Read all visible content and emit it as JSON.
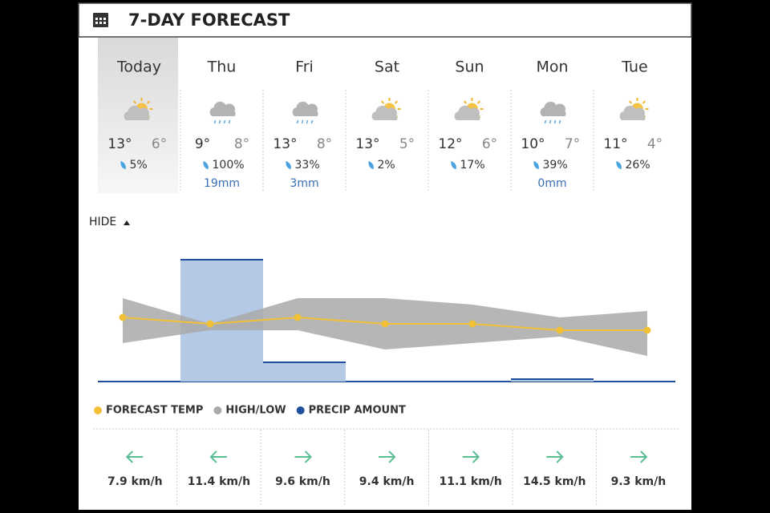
{
  "header": {
    "title": "7-DAY FORECAST"
  },
  "toggle": "HIDE",
  "icons": [
    "sun-cloud",
    "rain-cloud",
    "rain-cloud",
    "sun-cloud",
    "sun-cloud",
    "rain-cloud",
    "sun-cloud"
  ],
  "precip_chance": [
    "5%",
    "100%",
    "33%",
    "2%",
    "17%",
    "39%",
    "26%"
  ],
  "wind": [
    {
      "direction": "left",
      "speed": "7.9 km/h"
    },
    {
      "direction": "left",
      "speed": "11.4 km/h"
    },
    {
      "direction": "right",
      "speed": "9.6 km/h"
    },
    {
      "direction": "right",
      "speed": "9.4 km/h"
    },
    {
      "direction": "right",
      "speed": "11.1 km/h"
    },
    {
      "direction": "right",
      "speed": "14.5 km/h"
    },
    {
      "direction": "right",
      "speed": "9.3 km/h"
    }
  ],
  "chart_data": {
    "type": "line",
    "categories": [
      "Today",
      "Thu",
      "Fri",
      "Sat",
      "Sun",
      "Mon",
      "Tue"
    ],
    "ylim": [
      0,
      22
    ],
    "series": [
      {
        "name": "FORECAST TEMP",
        "color": "#f2c037",
        "values": [
          10,
          9,
          10,
          9,
          9,
          8,
          8
        ]
      },
      {
        "name": "HIGH/LOW",
        "color": "#a9a9a9",
        "high": [
          13,
          9,
          13,
          13,
          12,
          10,
          11
        ],
        "high_labels": [
          "13°",
          "9°",
          "13°",
          "13°",
          "12°",
          "10°",
          "11°"
        ],
        "low": [
          6,
          8,
          8,
          5,
          6,
          7,
          4
        ],
        "low_labels": [
          "6°",
          "8°",
          "8°",
          "5°",
          "6°",
          "7°",
          "4°"
        ]
      },
      {
        "name": "PRECIP AMOUNT",
        "color": "#1f4f9c",
        "values": [
          null,
          19,
          3,
          null,
          null,
          0,
          null
        ],
        "value_labels": [
          null,
          "19mm",
          "3mm",
          null,
          null,
          "0mm",
          null
        ]
      }
    ]
  }
}
